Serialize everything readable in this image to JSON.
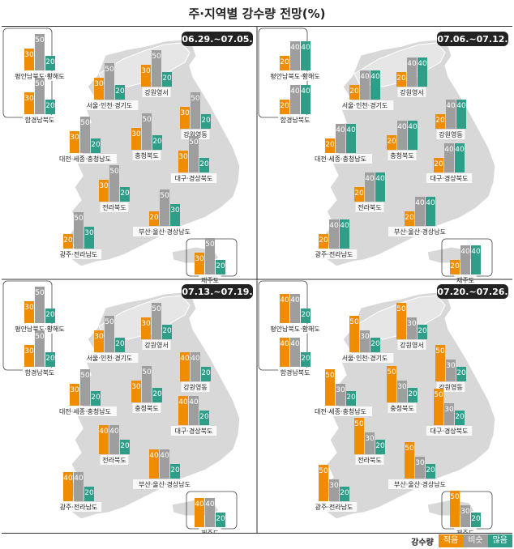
{
  "title": "주·지역별 강수량 전망(%)",
  "legend": {
    "title": "강수량",
    "items": [
      {
        "label": "적음",
        "color": "#F08C00"
      },
      {
        "label": "비슷",
        "color": "#9E9E9E"
      },
      {
        "label": "많음",
        "color": "#2E9E88"
      }
    ]
  },
  "chart_data": [
    {
      "type": "bar",
      "period": "06.29.~07.05.",
      "categories": [
        "적음",
        "비슷",
        "많음"
      ],
      "regions": [
        {
          "name": "평안남북도·황해도",
          "values": [
            30,
            50,
            20
          ]
        },
        {
          "name": "함경남북도",
          "values": [
            30,
            50,
            20
          ]
        },
        {
          "name": "서울·인천·경기도",
          "values": [
            30,
            50,
            20
          ]
        },
        {
          "name": "강원영서",
          "values": [
            30,
            50,
            20
          ]
        },
        {
          "name": "강원영동",
          "values": [
            30,
            50,
            20
          ]
        },
        {
          "name": "대전·세종·충청남도",
          "values": [
            30,
            50,
            20
          ]
        },
        {
          "name": "충청북도",
          "values": [
            30,
            50,
            20
          ]
        },
        {
          "name": "대구·경상북도",
          "values": [
            30,
            50,
            20
          ]
        },
        {
          "name": "전라북도",
          "values": [
            30,
            50,
            20
          ]
        },
        {
          "name": "부산·울산·경상남도",
          "values": [
            20,
            50,
            30
          ]
        },
        {
          "name": "광주·전라남도",
          "values": [
            20,
            50,
            30
          ]
        },
        {
          "name": "제주도",
          "values": [
            30,
            50,
            20
          ]
        }
      ]
    },
    {
      "type": "bar",
      "period": "07.06.~07.12.",
      "categories": [
        "적음",
        "비슷",
        "많음"
      ],
      "regions": [
        {
          "name": "평안남북도·황해도",
          "values": [
            20,
            40,
            40
          ]
        },
        {
          "name": "함경남북도",
          "values": [
            20,
            40,
            40
          ]
        },
        {
          "name": "서울·인천·경기도",
          "values": [
            20,
            40,
            40
          ]
        },
        {
          "name": "강원영서",
          "values": [
            20,
            40,
            40
          ]
        },
        {
          "name": "강원영동",
          "values": [
            20,
            40,
            40
          ]
        },
        {
          "name": "대전·세종·충청남도",
          "values": [
            20,
            40,
            40
          ]
        },
        {
          "name": "충청북도",
          "values": [
            20,
            40,
            40
          ]
        },
        {
          "name": "대구·경상북도",
          "values": [
            20,
            40,
            40
          ]
        },
        {
          "name": "전라북도",
          "values": [
            20,
            40,
            40
          ]
        },
        {
          "name": "부산·울산·경상남도",
          "values": [
            20,
            40,
            40
          ]
        },
        {
          "name": "광주·전라남도",
          "values": [
            20,
            40,
            40
          ]
        },
        {
          "name": "제주도",
          "values": [
            20,
            40,
            40
          ]
        }
      ]
    },
    {
      "type": "bar",
      "period": "07.13.~07.19.",
      "categories": [
        "적음",
        "비슷",
        "많음"
      ],
      "regions": [
        {
          "name": "평안남북도·황해도",
          "values": [
            30,
            50,
            20
          ]
        },
        {
          "name": "함경남북도",
          "values": [
            30,
            50,
            20
          ]
        },
        {
          "name": "서울·인천·경기도",
          "values": [
            30,
            50,
            20
          ]
        },
        {
          "name": "강원영서",
          "values": [
            30,
            50,
            20
          ]
        },
        {
          "name": "강원영동",
          "values": [
            40,
            40,
            20
          ]
        },
        {
          "name": "대전·세종·충청남도",
          "values": [
            30,
            50,
            20
          ]
        },
        {
          "name": "충청북도",
          "values": [
            30,
            50,
            20
          ]
        },
        {
          "name": "대구·경상북도",
          "values": [
            40,
            40,
            20
          ]
        },
        {
          "name": "전라북도",
          "values": [
            40,
            40,
            20
          ]
        },
        {
          "name": "부산·울산·경상남도",
          "values": [
            40,
            40,
            20
          ]
        },
        {
          "name": "광주·전라남도",
          "values": [
            40,
            40,
            20
          ]
        },
        {
          "name": "제주도",
          "values": [
            40,
            40,
            20
          ]
        }
      ]
    },
    {
      "type": "bar",
      "period": "07.20.~07.26.",
      "categories": [
        "적음",
        "비슷",
        "많음"
      ],
      "regions": [
        {
          "name": "평안남북도·황해도",
          "values": [
            40,
            40,
            20
          ]
        },
        {
          "name": "함경남북도",
          "values": [
            40,
            40,
            20
          ]
        },
        {
          "name": "서울·인천·경기도",
          "values": [
            50,
            30,
            20
          ]
        },
        {
          "name": "강원영서",
          "values": [
            50,
            30,
            20
          ]
        },
        {
          "name": "강원영동",
          "values": [
            50,
            30,
            20
          ]
        },
        {
          "name": "대전·세종·충청남도",
          "values": [
            50,
            30,
            20
          ]
        },
        {
          "name": "충청북도",
          "values": [
            50,
            30,
            20
          ]
        },
        {
          "name": "대구·경상북도",
          "values": [
            50,
            30,
            20
          ]
        },
        {
          "name": "전라북도",
          "values": [
            50,
            30,
            20
          ]
        },
        {
          "name": "부산·울산·경상남도",
          "values": [
            50,
            30,
            20
          ]
        },
        {
          "name": "광주·전라남도",
          "values": [
            50,
            30,
            20
          ]
        },
        {
          "name": "제주도",
          "values": [
            50,
            30,
            20
          ]
        }
      ]
    }
  ]
}
